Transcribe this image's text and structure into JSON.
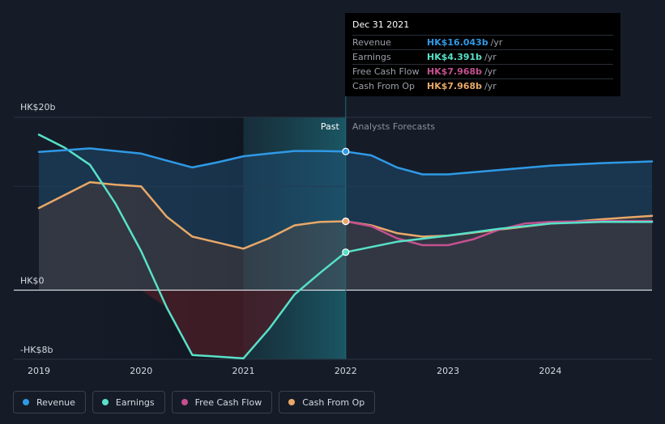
{
  "chart_data": {
    "type": "line",
    "y_axis_labels": [
      "HK$20b",
      "HK$0",
      "-HK$8b"
    ],
    "ylim": [
      -8,
      20
    ],
    "x_tick_labels": [
      "2019",
      "2020",
      "2021",
      "2022",
      "2023",
      "2024"
    ],
    "x_tick_years": [
      2019,
      2020,
      2021,
      2022,
      2023,
      2024
    ],
    "xlim": [
      2019,
      2024.995
    ],
    "divider_x": 2022.0,
    "highlight_start_x": 2021.0,
    "past_label": "Past",
    "forecast_label": "Analysts Forecasts",
    "series": [
      {
        "name": "Revenue",
        "color": "#2f9ae6",
        "fill": true,
        "points": [
          [
            2019.0,
            16.0
          ],
          [
            2019.25,
            16.2
          ],
          [
            2019.5,
            16.4
          ],
          [
            2019.75,
            16.1
          ],
          [
            2020.0,
            15.8
          ],
          [
            2020.25,
            15.0
          ],
          [
            2020.5,
            14.2
          ],
          [
            2020.75,
            14.8
          ],
          [
            2021.0,
            15.5
          ],
          [
            2021.25,
            15.8
          ],
          [
            2021.5,
            16.1
          ],
          [
            2021.75,
            16.1
          ],
          [
            2022.0,
            16.043
          ],
          [
            2022.25,
            15.6
          ],
          [
            2022.5,
            14.2
          ],
          [
            2022.75,
            13.4
          ],
          [
            2023.0,
            13.4
          ],
          [
            2023.5,
            13.9
          ],
          [
            2024.0,
            14.4
          ],
          [
            2024.5,
            14.7
          ],
          [
            2024.995,
            14.9
          ]
        ]
      },
      {
        "name": "Earnings",
        "color": "#58e1c8",
        "fill": false,
        "points": [
          [
            2019.0,
            18.0
          ],
          [
            2019.25,
            16.5
          ],
          [
            2019.5,
            14.5
          ],
          [
            2019.75,
            10.0
          ],
          [
            2020.0,
            4.5
          ],
          [
            2020.25,
            -2.0
          ],
          [
            2020.5,
            -7.5
          ],
          [
            2020.75,
            -7.7
          ],
          [
            2021.0,
            -7.9
          ],
          [
            2021.25,
            -4.5
          ],
          [
            2021.5,
            -0.5
          ],
          [
            2021.75,
            2.0
          ],
          [
            2022.0,
            4.391
          ],
          [
            2022.5,
            5.6
          ],
          [
            2023.0,
            6.3
          ],
          [
            2023.5,
            7.1
          ],
          [
            2024.0,
            7.7
          ],
          [
            2024.5,
            7.9
          ],
          [
            2024.995,
            7.9
          ]
        ]
      },
      {
        "name": "Free Cash Flow",
        "color": "#c5508e",
        "fill": false,
        "points": [
          [
            2022.0,
            7.968
          ],
          [
            2022.25,
            7.4
          ],
          [
            2022.5,
            6.0
          ],
          [
            2022.75,
            5.2
          ],
          [
            2023.0,
            5.2
          ],
          [
            2023.25,
            5.9
          ],
          [
            2023.5,
            7.0
          ],
          [
            2023.75,
            7.7
          ],
          [
            2024.0,
            7.9
          ],
          [
            2024.5,
            8.0
          ],
          [
            2024.995,
            8.0
          ]
        ]
      },
      {
        "name": "Cash From Op",
        "color": "#e8a868",
        "fill": true,
        "points": [
          [
            2019.0,
            9.5
          ],
          [
            2019.25,
            11.0
          ],
          [
            2019.5,
            12.5
          ],
          [
            2019.75,
            12.2
          ],
          [
            2020.0,
            12.0
          ],
          [
            2020.25,
            8.5
          ],
          [
            2020.5,
            6.2
          ],
          [
            2020.75,
            5.5
          ],
          [
            2021.0,
            4.8
          ],
          [
            2021.25,
            6.0
          ],
          [
            2021.5,
            7.5
          ],
          [
            2021.75,
            7.9
          ],
          [
            2022.0,
            7.968
          ],
          [
            2022.25,
            7.5
          ],
          [
            2022.5,
            6.6
          ],
          [
            2022.75,
            6.2
          ],
          [
            2023.0,
            6.3
          ],
          [
            2023.5,
            7.0
          ],
          [
            2024.0,
            7.7
          ],
          [
            2024.5,
            8.2
          ],
          [
            2024.995,
            8.6
          ]
        ]
      }
    ]
  },
  "tooltip": {
    "date": "Dec 31 2021",
    "rows": [
      {
        "label": "Revenue",
        "value": "HK$16.043b",
        "unit": "/yr",
        "color": "#2f9ae6"
      },
      {
        "label": "Earnings",
        "value": "HK$4.391b",
        "unit": "/yr",
        "color": "#58e1c8"
      },
      {
        "label": "Free Cash Flow",
        "value": "HK$7.968b",
        "unit": "/yr",
        "color": "#c5508e"
      },
      {
        "label": "Cash From Op",
        "value": "HK$7.968b",
        "unit": "/yr",
        "color": "#e8a868"
      }
    ]
  },
  "legend": [
    {
      "label": "Revenue",
      "color": "#2f9ae6"
    },
    {
      "label": "Earnings",
      "color": "#58e1c8"
    },
    {
      "label": "Free Cash Flow",
      "color": "#c5508e"
    },
    {
      "label": "Cash From Op",
      "color": "#e8a868"
    }
  ]
}
